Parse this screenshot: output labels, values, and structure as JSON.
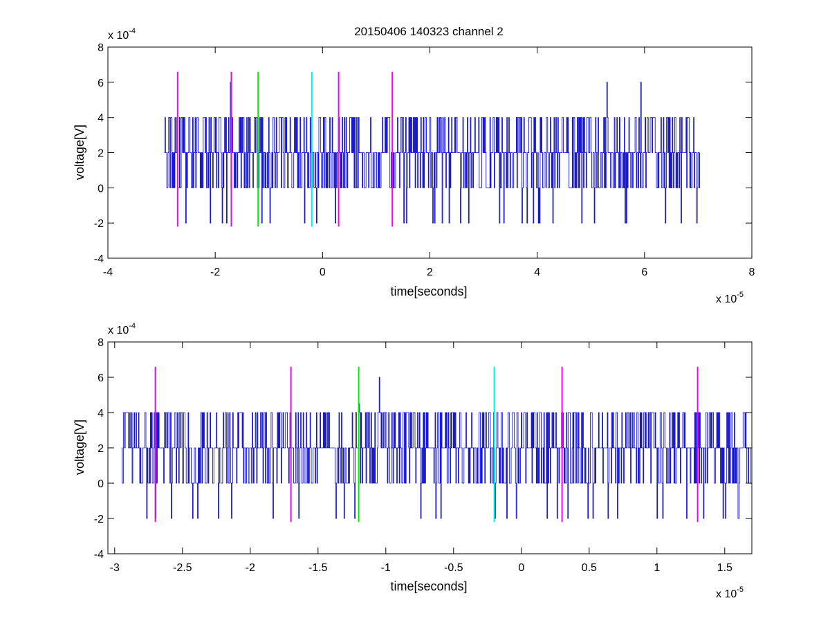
{
  "figure": {
    "title": "20150406 140323 channel 2"
  },
  "colors": {
    "signal": "#0000cc",
    "magenta": "#ff00ff",
    "green": "#00ee00",
    "cyan": "#00eeee",
    "axis": "#000000"
  },
  "chart_data": [
    {
      "type": "line",
      "title": "20150406 140323 channel 2",
      "xlabel": "time[seconds]",
      "ylabel": "voltage[V]",
      "x_multiplier": "x 10",
      "x_exponent": "-5",
      "y_multiplier": "x 10",
      "y_exponent": "-4",
      "xlim": [
        -4,
        8
      ],
      "ylim": [
        -4,
        8
      ],
      "xticks": [
        "-4",
        "-2",
        "0",
        "2",
        "4",
        "6",
        "8"
      ],
      "yticks": [
        "-4",
        "-2",
        "0",
        "2",
        "4",
        "6",
        "8"
      ],
      "grid": false,
      "series_note_units": "x in units of 1e-5 s, y in units of 1e-4 V",
      "signal_x_range": [
        -2.95,
        7.03
      ],
      "signal_levels": [
        -2,
        0,
        2,
        4,
        6
      ],
      "signal_baseline": 2,
      "signal_peaks": [
        [
          -1.72,
          6
        ],
        [
          5.3,
          6
        ],
        [
          5.93,
          6
        ]
      ],
      "markers": [
        {
          "x": -2.7,
          "color": "magenta",
          "ymin": -2.2,
          "ymax": 6.6
        },
        {
          "x": -1.7,
          "color": "magenta",
          "ymin": -2.2,
          "ymax": 6.6
        },
        {
          "x": -1.2,
          "color": "green",
          "ymin": -2.2,
          "ymax": 6.6
        },
        {
          "x": -0.2,
          "color": "cyan",
          "ymin": -2.2,
          "ymax": 6.6
        },
        {
          "x": 0.3,
          "color": "magenta",
          "ymin": -2.2,
          "ymax": 6.6
        },
        {
          "x": 1.3,
          "color": "magenta",
          "ymin": -2.2,
          "ymax": 6.6
        }
      ]
    },
    {
      "type": "line",
      "xlabel": "time[seconds]",
      "ylabel": "voltage[V]",
      "x_multiplier": "x 10",
      "x_exponent": "-5",
      "y_multiplier": "x 10",
      "y_exponent": "-4",
      "xlim": [
        -3.05,
        1.7
      ],
      "ylim": [
        -4,
        8
      ],
      "xtick_values": [
        -3,
        -2.5,
        -2,
        -1.5,
        -1,
        -0.5,
        0,
        0.5,
        1,
        1.5
      ],
      "xticks": [
        "-3",
        "-2.5",
        "-2",
        "-1.5",
        "-1",
        "-0.5",
        "0",
        "0.5",
        "1",
        "1.5"
      ],
      "yticks": [
        "-4",
        "-2",
        "0",
        "2",
        "4",
        "6",
        "8"
      ],
      "grid": false,
      "signal_x_range": [
        -2.95,
        1.7
      ],
      "signal_levels": [
        -2,
        0,
        2,
        4,
        6
      ],
      "signal_baseline": 2,
      "signal_peaks": [
        [
          -1.2,
          4.5
        ],
        [
          -1.05,
          6
        ]
      ],
      "markers": [
        {
          "x": -2.7,
          "color": "magenta",
          "ymin": -2.2,
          "ymax": 6.6
        },
        {
          "x": -1.7,
          "color": "magenta",
          "ymin": -2.2,
          "ymax": 6.6
        },
        {
          "x": -1.2,
          "color": "green",
          "ymin": -2.2,
          "ymax": 6.6
        },
        {
          "x": -0.2,
          "color": "cyan",
          "ymin": -2.2,
          "ymax": 6.6
        },
        {
          "x": 0.3,
          "color": "magenta",
          "ymin": -2.2,
          "ymax": 6.6
        },
        {
          "x": 1.3,
          "color": "magenta",
          "ymin": -2.2,
          "ymax": 6.6
        }
      ]
    }
  ]
}
